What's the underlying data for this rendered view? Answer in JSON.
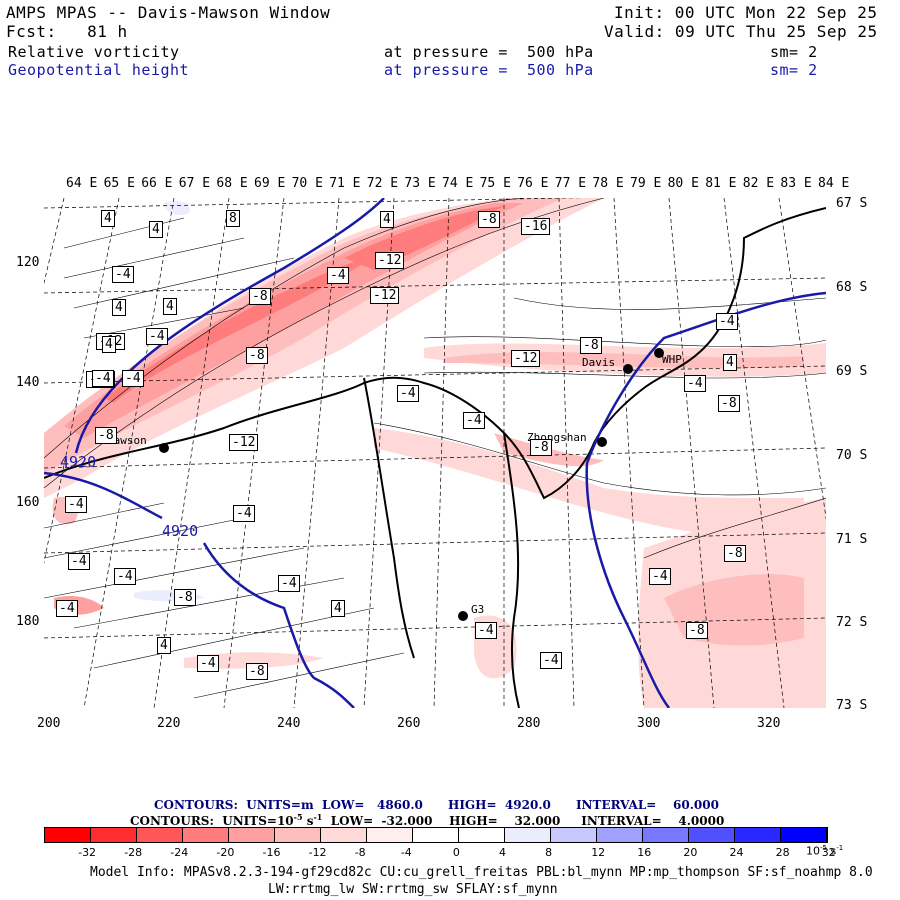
{
  "header": {
    "title": "AMPS MPAS -- Davis-Mawson Window",
    "forecast": "Fcst:   81 h",
    "init": "Init: 00 UTC Mon 22 Sep 25",
    "valid": "Valid: 09 UTC Thu 25 Sep 25",
    "field1_name": "Relative vorticity",
    "field1_level": "at pressure =  500 hPa",
    "field1_smooth": "sm= 2",
    "field2_name": "Geopotential height",
    "field2_level": "at pressure =  500 hPa",
    "field2_smooth": "sm= 2",
    "field2_color": "#1a1aa8"
  },
  "map": {
    "lon_labels": [
      "64 E",
      "65 E",
      "66 E",
      "67 E",
      "68 E",
      "69 E",
      "70 E",
      "71 E",
      "72 E",
      "73 E",
      "74 E",
      "75 E",
      "76 E",
      "77 E",
      "78 E",
      "79 E",
      "80 E",
      "81 E",
      "82 E",
      "83 E",
      "84 E"
    ],
    "lat_labels": [
      "67 S",
      "68 S",
      "69 S",
      "70 S",
      "71 S",
      "72 S",
      "73 S"
    ],
    "y_ticks": [
      "120",
      "140",
      "160",
      "180"
    ],
    "x_ticks": [
      "200",
      "220",
      "240",
      "260",
      "280",
      "300",
      "320"
    ],
    "places": {
      "mawson": "Mawson",
      "davis": "Davis",
      "zhongshan": "Zhongshan",
      "whp": "WHP",
      "g3": "G3"
    },
    "height_contour_label": "4920",
    "height_contour_label2": "4920",
    "vorticity_labels": [
      "4",
      "4",
      "8",
      "4",
      "-8",
      "-16",
      "-4",
      "4",
      "-4",
      "-12",
      "4",
      "-8",
      "-12",
      "-12",
      "-4",
      "-12",
      "-8",
      "-12",
      "-8",
      "-4",
      "-8",
      "-12",
      "-4",
      "-4",
      "-8",
      "-4",
      "-8",
      "-4",
      "-4",
      "-4",
      "-8",
      "-4",
      "4",
      "-4",
      "4",
      "-4",
      "-4",
      "-8",
      "-4",
      "-8",
      "4",
      "-4",
      "-8",
      "4",
      "-4",
      "-4",
      "-4"
    ]
  },
  "contours": {
    "line1_prefix": "CONTOURS:",
    "line1_units": "UNITS=m",
    "line1_low": "LOW=   4860.0",
    "line1_high": "HIGH=  4920.0",
    "line1_interval": "INTERVAL=    60.000",
    "line2_prefix": "CONTOURS:",
    "line2_units": "UNITS=10",
    "line2_units_exp": "-5",
    "line2_units_s": " s",
    "line2_units_sexp": "-1",
    "line2_low": "LOW=  -32.000",
    "line2_high": "HIGH=    32.000",
    "line2_interval": "INTERVAL=    4.0000"
  },
  "colorbar": {
    "colors": [
      "#ff0000",
      "#ff2e2e",
      "#ff5656",
      "#ff7c7c",
      "#ffa0a0",
      "#ffbebe",
      "#ffd8d8",
      "#ffeeee",
      "#ffffff",
      "#ffffff",
      "#ececff",
      "#c8c8ff",
      "#a0a0ff",
      "#7878ff",
      "#5050ff",
      "#2828ff",
      "#0000ff"
    ],
    "ticks": [
      "-32",
      "-28",
      "-24",
      "-20",
      "-16",
      "-12",
      "-8",
      "-4",
      "0",
      "4",
      "8",
      "12",
      "16",
      "20",
      "24",
      "28",
      "32"
    ],
    "unit": "10",
    "unit_exp": "-5",
    "unit_s": " s",
    "unit_sexp": "-1"
  },
  "footer": {
    "model_info": "Model Info: MPASv8.2.3-194-gf29cd82c CU:cu_grell_freitas PBL:bl_mynn MP:mp_thompson SF:sf_noahmp 8.0",
    "model_info2": "LW:rrtmg_lw SW:rrtmg_sw SFLAY:sf_mynn"
  }
}
